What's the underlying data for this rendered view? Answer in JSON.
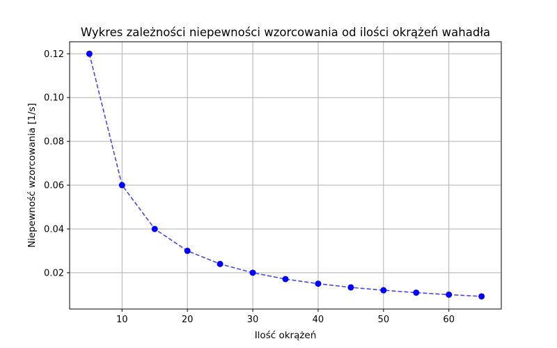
{
  "chart_data": {
    "type": "line",
    "title": "Wykres zależności niepewności wzorcowania od ilości okrążeń wahadła",
    "xlabel": "Ilość okrążeń",
    "ylabel": "Niepewność wzorcowania [1/s]",
    "xlim": [
      1.98,
      68.02
    ],
    "ylim": [
      0.003425,
      0.1255
    ],
    "xticks": [
      10,
      20,
      30,
      40,
      50,
      60
    ],
    "yticks": [
      0.02,
      0.04,
      0.06,
      0.08,
      0.1,
      0.12
    ],
    "xtick_labels": [
      "10",
      "20",
      "30",
      "40",
      "50",
      "60"
    ],
    "ytick_labels": [
      "0.02",
      "0.04",
      "0.06",
      "0.08",
      "0.10",
      "0.12"
    ],
    "grid": true,
    "series": [
      {
        "name": "niepewność",
        "x": [
          5,
          10,
          15,
          20,
          25,
          30,
          35,
          40,
          45,
          50,
          55,
          60,
          65
        ],
        "values": [
          0.12,
          0.06,
          0.04,
          0.03,
          0.024,
          0.02,
          0.0171,
          0.015,
          0.0133,
          0.012,
          0.0109,
          0.01,
          0.0092
        ],
        "line_color": "#4646ee",
        "marker_color": "#0000ff",
        "line_style": "dashed"
      }
    ]
  }
}
